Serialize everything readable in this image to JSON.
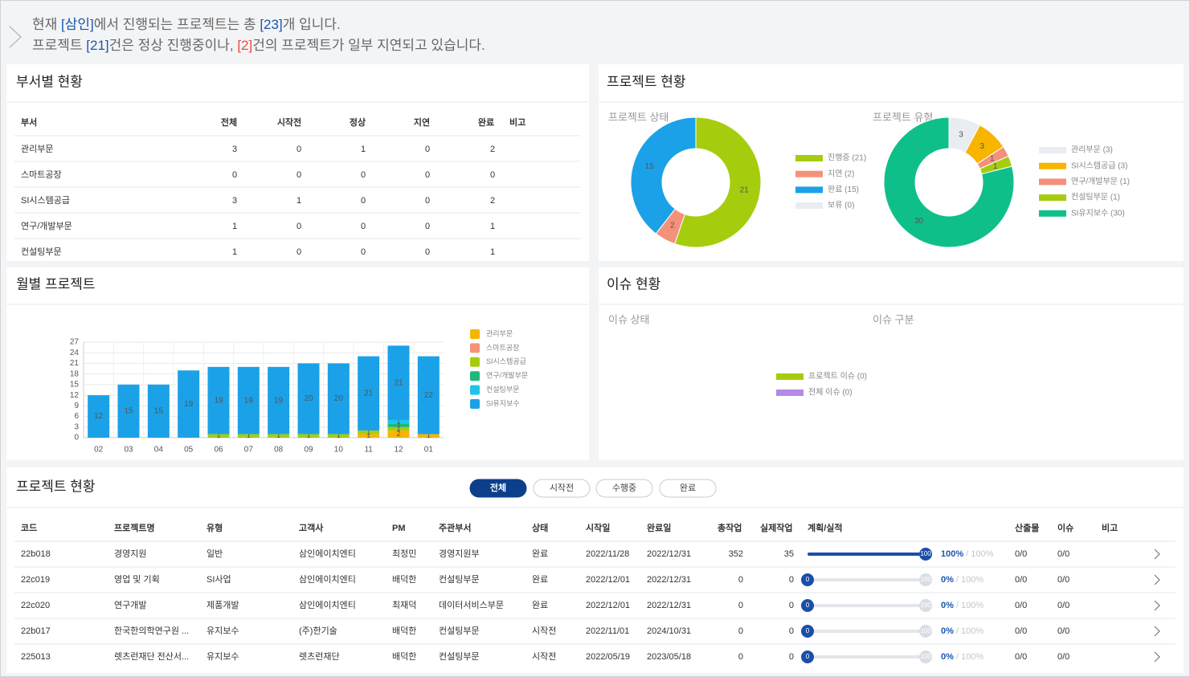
{
  "header": {
    "line1": [
      "현재 ",
      "[삼인]",
      "에서 진행되는 프로젝트는 총 ",
      "[23]",
      "개 입니다."
    ],
    "line2": [
      "프로젝트 ",
      "[21]",
      "건은 정상 진행중이나, ",
      "[2]",
      "건의 프로젝트가 일부 지연되고 있습니다."
    ]
  },
  "dept_panel": {
    "title": "부서별 현황",
    "columns": [
      "부서",
      "전체",
      "시작전",
      "정상",
      "지연",
      "완료",
      "비고"
    ],
    "rows": [
      [
        "관리부문",
        3,
        0,
        1,
        0,
        2
      ],
      [
        "스마트공장",
        0,
        0,
        0,
        0,
        0
      ],
      [
        "SI시스템공급",
        3,
        1,
        0,
        0,
        2
      ],
      [
        "연구/개발부문",
        1,
        0,
        0,
        0,
        1
      ],
      [
        "컨설팅부문",
        1,
        0,
        0,
        0,
        1
      ]
    ]
  },
  "status_panel": {
    "title": "프로젝트 현황"
  },
  "monthly_panel": {
    "title": "월별 프로젝트"
  },
  "issue_panel": {
    "title": "이슈 현황"
  },
  "chart_data": [
    {
      "type": "donut",
      "subtitle": "프로젝트 상태",
      "categories": [
        "진행중 (21)",
        "지연 (2)",
        "완료 (15)",
        "보류 (0)"
      ],
      "values": [
        21,
        2,
        15,
        0
      ],
      "colors": [
        "#a5cd0e",
        "#f4917a",
        "#1ba1e8",
        "#e9ecf1"
      ]
    },
    {
      "type": "donut",
      "subtitle": "프로젝트 유형",
      "categories": [
        "관리부문 (3)",
        "SI시스템공급 (3)",
        "연구/개발부문 (1)",
        "컨설팅부문 (1)",
        "SI유지보수 (30)"
      ],
      "values": [
        3,
        3,
        1,
        1,
        30
      ],
      "colors": [
        "#e9ecf1",
        "#f7b500",
        "#f4917a",
        "#a5cd0e",
        "#0fbf8a"
      ]
    },
    {
      "type": "bar",
      "stacked": true,
      "grid": true,
      "categories": [
        "02",
        "03",
        "04",
        "05",
        "06",
        "07",
        "08",
        "09",
        "10",
        "11",
        "12",
        "01"
      ],
      "ylim": [
        0,
        27
      ],
      "yticks": [
        0,
        3,
        6,
        9,
        12,
        15,
        18,
        21,
        24,
        27
      ],
      "series": [
        {
          "name": "관리부문",
          "color": "#f7b500",
          "values": [
            0,
            0,
            0,
            0,
            0,
            0,
            0,
            0,
            0,
            1,
            2,
            1
          ]
        },
        {
          "name": "스마트공장",
          "color": "#f4917a",
          "values": [
            0,
            0,
            0,
            0,
            0,
            0,
            0,
            0,
            0,
            0,
            0,
            0
          ]
        },
        {
          "name": "SI시스템공급",
          "color": "#a5cd0e",
          "values": [
            0,
            0,
            0,
            0,
            1,
            1,
            1,
            1,
            1,
            1,
            1,
            0
          ]
        },
        {
          "name": "연구/개발부문",
          "color": "#1db97a",
          "values": [
            0,
            0,
            0,
            0,
            0,
            0,
            0,
            0,
            0,
            0,
            1,
            0
          ]
        },
        {
          "name": "컨설팅부문",
          "color": "#21c4e8",
          "values": [
            0,
            0,
            0,
            0,
            0,
            0,
            0,
            0,
            0,
            0,
            1,
            0
          ]
        },
        {
          "name": "SI유지보수",
          "color": "#1ba1e8",
          "values": [
            12,
            15,
            15,
            19,
            19,
            19,
            19,
            20,
            20,
            21,
            21,
            22
          ]
        }
      ]
    },
    {
      "type": "donut",
      "subtitles": [
        "이슈 상태",
        "이슈 구분"
      ],
      "categories": [
        "프로젝트 이슈 (0)",
        "전체 이슈 (0)"
      ],
      "values": [
        0,
        0
      ],
      "colors": [
        "#a5cd0e",
        "#b38ae6"
      ]
    }
  ],
  "project_panel": {
    "title": "프로젝트 현황",
    "filters": [
      "전체",
      "시작전",
      "수행중",
      "완료"
    ],
    "columns": [
      "코드",
      "프로젝트명",
      "유형",
      "고객사",
      "PM",
      "주관부서",
      "상태",
      "시작일",
      "완료일",
      "총작업",
      "실제작업",
      "계획/실적",
      "산출물",
      "이슈",
      "비고"
    ],
    "rows": [
      [
        "22b018",
        "경영지원",
        "일반",
        "삼인에이치엔티",
        "최정민",
        "경영지원부",
        "완료",
        "2022/11/28",
        "2022/12/31",
        352,
        35,
        {
          "actual": 100,
          "plan": 100,
          "actual_label": "100%",
          "plan_label": "/ 100%"
        },
        "0/0",
        "0/0"
      ],
      [
        "22c019",
        "영업 및 기획",
        "SI사업",
        "삼인에이치엔티",
        "배덕한",
        "컨설팅부문",
        "완료",
        "2022/12/01",
        "2022/12/31",
        0,
        0,
        {
          "actual": 0,
          "plan": 100,
          "actual_label": "0%",
          "plan_label": "/ 100%"
        },
        "0/0",
        "0/0"
      ],
      [
        "22c020",
        "연구개발",
        "제품개발",
        "삼인에이치엔티",
        "최재덕",
        "데이터서비스부문",
        "완료",
        "2022/12/01",
        "2022/12/31",
        0,
        0,
        {
          "actual": 0,
          "plan": 100,
          "actual_label": "0%",
          "plan_label": "/ 100%"
        },
        "0/0",
        "0/0"
      ],
      [
        "22b017",
        "한국한의학연구원 ...",
        "유지보수",
        "(주)한기술",
        "배덕한",
        "컨설팅부문",
        "시작전",
        "2022/11/01",
        "2024/10/31",
        0,
        0,
        {
          "actual": 0,
          "plan": 100,
          "actual_label": "0%",
          "plan_label": "/ 100%"
        },
        "0/0",
        "0/0"
      ],
      [
        "225013",
        "렛츠런재단 전산서...",
        "유지보수",
        "렛츠런재단",
        "배덕한",
        "컨설팅부문",
        "시작전",
        "2022/05/19",
        "2023/05/18",
        0,
        0,
        {
          "actual": 0,
          "plan": 100,
          "actual_label": "0%",
          "plan_label": "/ 100%"
        },
        "0/0",
        "0/0"
      ]
    ]
  }
}
